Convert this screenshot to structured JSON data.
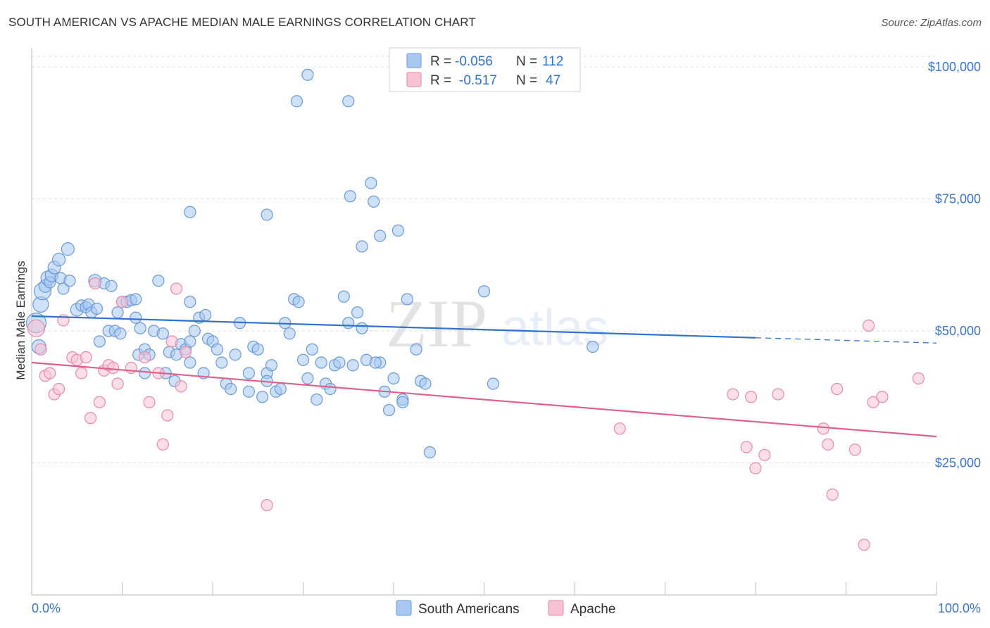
{
  "header": {
    "title": "SOUTH AMERICAN VS APACHE MEDIAN MALE EARNINGS CORRELATION CHART",
    "source": "Source: ZipAtlas.com"
  },
  "watermark": {
    "zip": "ZIP",
    "atlas": "atlas"
  },
  "legend": {
    "rows": [
      {
        "r_label": "R =",
        "r_value": "-0.056",
        "n_label": "N =",
        "n_value": "112",
        "color": "#a8c8f0"
      },
      {
        "r_label": "R =",
        "r_value": "-0.517",
        "n_label": "N =",
        "n_value": "47",
        "color": "#f4b8cc"
      }
    ]
  },
  "bottom_legend": [
    {
      "label": "South Americans",
      "color": "#a8c8f0"
    },
    {
      "label": "Apache",
      "color": "#f4b8cc"
    }
  ],
  "colors": {
    "blue_fill": "#a8c8f0",
    "blue_stroke": "#6a9ad8",
    "blue_line": "#2f72d0",
    "pink_fill": "#f7c3d4",
    "pink_stroke": "#e98aaa",
    "pink_line": "#e0608c",
    "tick_text": "#3b74c9",
    "grid": "#dddddd"
  },
  "chart_data": {
    "type": "scatter",
    "title": "SOUTH AMERICAN VS APACHE MEDIAN MALE EARNINGS CORRELATION CHART",
    "xlabel": "",
    "ylabel": "Median Male Earnings",
    "xlim": [
      0,
      100
    ],
    "ylim": [
      0,
      102000
    ],
    "x_tick_labels": [
      "0.0%",
      "100.0%"
    ],
    "y_ticks": [
      25000,
      50000,
      75000,
      100000
    ],
    "y_tick_labels": [
      "$25,000",
      "$50,000",
      "$75,000",
      "$100,000"
    ],
    "grid": true,
    "series": [
      {
        "name": "South Americans",
        "r": -0.056,
        "n": 112,
        "trend": {
          "x0": 0,
          "y0": 52800,
          "x1": 80,
          "y1": 48700,
          "dashed_to": 100,
          "dashed_y": 47700
        },
        "points": [
          [
            0.5,
            51500,
            14
          ],
          [
            0.8,
            47000,
            10
          ],
          [
            1.0,
            55000,
            11
          ],
          [
            1.2,
            57500,
            12
          ],
          [
            1.5,
            58500,
            9
          ],
          [
            1.8,
            60000,
            10
          ],
          [
            2.0,
            59200,
            8
          ],
          [
            2.2,
            60500,
            9
          ],
          [
            2.5,
            62000,
            9
          ],
          [
            3.0,
            63500,
            9
          ],
          [
            3.2,
            60000,
            8
          ],
          [
            3.5,
            58000,
            8
          ],
          [
            4.0,
            65500,
            9
          ],
          [
            4.2,
            59500,
            8
          ],
          [
            5.0,
            54000,
            9
          ],
          [
            5.5,
            54800,
            8
          ],
          [
            6.0,
            54500,
            8
          ],
          [
            6.3,
            55000,
            8
          ],
          [
            6.6,
            53500,
            8
          ],
          [
            7.0,
            59500,
            9
          ],
          [
            7.2,
            54200,
            8
          ],
          [
            7.5,
            48000,
            8
          ],
          [
            8.0,
            59000,
            8
          ],
          [
            8.5,
            50000,
            8
          ],
          [
            8.8,
            58500,
            8
          ],
          [
            9.2,
            50000,
            8
          ],
          [
            9.5,
            53500,
            8
          ],
          [
            9.8,
            49500,
            8
          ],
          [
            10.0,
            55500,
            8
          ],
          [
            10.5,
            55500,
            8
          ],
          [
            11.0,
            55800,
            8
          ],
          [
            11.5,
            52500,
            8
          ],
          [
            11.8,
            45500,
            8
          ],
          [
            12.0,
            50500,
            8
          ],
          [
            12.5,
            46500,
            8
          ],
          [
            13.0,
            45500,
            8
          ],
          [
            13.5,
            50000,
            8
          ],
          [
            14.0,
            59500,
            8
          ],
          [
            14.5,
            49500,
            8
          ],
          [
            14.8,
            42000,
            8
          ],
          [
            15.2,
            46000,
            8
          ],
          [
            15.8,
            40500,
            8
          ],
          [
            16.0,
            45500,
            8
          ],
          [
            16.5,
            47500,
            8
          ],
          [
            17.0,
            46500,
            8
          ],
          [
            17.5,
            44000,
            8
          ],
          [
            17.5,
            55500,
            8
          ],
          [
            18.0,
            50000,
            8
          ],
          [
            18.5,
            52500,
            8
          ],
          [
            19.0,
            42000,
            8
          ],
          [
            19.2,
            53000,
            8
          ],
          [
            19.5,
            48500,
            8
          ],
          [
            20.0,
            48000,
            8
          ],
          [
            20.5,
            46500,
            8
          ],
          [
            21.0,
            44000,
            8
          ],
          [
            21.5,
            40000,
            8
          ],
          [
            22.0,
            39000,
            8
          ],
          [
            22.5,
            45500,
            8
          ],
          [
            23.0,
            51500,
            8
          ],
          [
            24.0,
            38500,
            8
          ],
          [
            24.5,
            47000,
            8
          ],
          [
            25.0,
            46500,
            8
          ],
          [
            25.5,
            37500,
            8
          ],
          [
            26.0,
            42000,
            8
          ],
          [
            26.5,
            43500,
            8
          ],
          [
            27.0,
            38500,
            8
          ],
          [
            27.5,
            39000,
            8
          ],
          [
            28.0,
            51500,
            8
          ],
          [
            28.5,
            49500,
            8
          ],
          [
            29.0,
            56000,
            8
          ],
          [
            29.5,
            55500,
            8
          ],
          [
            30.0,
            44500,
            8
          ],
          [
            30.5,
            41000,
            8
          ],
          [
            31.0,
            46500,
            8
          ],
          [
            31.5,
            37000,
            8
          ],
          [
            32.0,
            44000,
            8
          ],
          [
            32.5,
            40000,
            8
          ],
          [
            33.0,
            39000,
            8
          ],
          [
            33.5,
            43500,
            8
          ],
          [
            34.0,
            44000,
            8
          ],
          [
            34.5,
            56500,
            8
          ],
          [
            35.0,
            51500,
            8
          ],
          [
            35.5,
            43500,
            8
          ],
          [
            36.0,
            53500,
            8
          ],
          [
            36.5,
            50500,
            8
          ],
          [
            37.0,
            44500,
            8
          ],
          [
            37.5,
            78000,
            8
          ],
          [
            37.8,
            74500,
            8
          ],
          [
            38.5,
            44000,
            8
          ],
          [
            39.0,
            38500,
            8
          ],
          [
            39.5,
            35000,
            8
          ],
          [
            40.0,
            41000,
            8
          ],
          [
            41.0,
            37000,
            8
          ],
          [
            41.5,
            56000,
            8
          ],
          [
            42.5,
            46500,
            8
          ],
          [
            43.0,
            40500,
            8
          ],
          [
            44.0,
            27000,
            8
          ],
          [
            24.0,
            42000,
            8
          ],
          [
            26.0,
            40500,
            8
          ],
          [
            17.5,
            48000,
            8
          ],
          [
            11.5,
            56000,
            8
          ],
          [
            12.5,
            42000,
            8
          ],
          [
            17.5,
            72500,
            8
          ],
          [
            26.0,
            72000,
            8
          ],
          [
            29.3,
            93500,
            8
          ],
          [
            30.5,
            98500,
            8
          ],
          [
            35.0,
            93500,
            8
          ],
          [
            35.2,
            75500,
            8
          ],
          [
            36.5,
            66000,
            8
          ],
          [
            38.5,
            68000,
            8
          ],
          [
            40.5,
            69000,
            8
          ],
          [
            38.0,
            44000,
            8
          ],
          [
            41.0,
            36500,
            8
          ],
          [
            43.5,
            40000,
            8
          ],
          [
            50.0,
            57500,
            8
          ],
          [
            51.0,
            40000,
            8
          ],
          [
            62.0,
            47000,
            8
          ]
        ]
      },
      {
        "name": "Apache",
        "r": -0.517,
        "n": 47,
        "trend": {
          "x0": 0,
          "y0": 44000,
          "x1": 100,
          "y1": 30000
        },
        "points": [
          [
            0.5,
            50500,
            12
          ],
          [
            1.0,
            46500,
            8
          ],
          [
            1.5,
            41500,
            8
          ],
          [
            2.0,
            42000,
            8
          ],
          [
            2.5,
            38000,
            8
          ],
          [
            3.0,
            39000,
            8
          ],
          [
            3.5,
            52000,
            8
          ],
          [
            4.5,
            45000,
            8
          ],
          [
            5.0,
            44500,
            8
          ],
          [
            5.5,
            42000,
            8
          ],
          [
            6.0,
            45000,
            8
          ],
          [
            6.5,
            33500,
            8
          ],
          [
            7.0,
            59000,
            8
          ],
          [
            7.5,
            36500,
            8
          ],
          [
            8.0,
            42500,
            8
          ],
          [
            8.5,
            43500,
            8
          ],
          [
            9.0,
            43000,
            8
          ],
          [
            9.5,
            40000,
            8
          ],
          [
            10.0,
            55500,
            8
          ],
          [
            11.0,
            43000,
            8
          ],
          [
            12.5,
            45000,
            8
          ],
          [
            13.0,
            36500,
            8
          ],
          [
            14.0,
            42000,
            8
          ],
          [
            14.5,
            28500,
            8
          ],
          [
            15.0,
            34000,
            8
          ],
          [
            15.5,
            48000,
            8
          ],
          [
            16.0,
            58000,
            8
          ],
          [
            16.5,
            39500,
            8
          ],
          [
            17.0,
            46000,
            8
          ],
          [
            26.0,
            17000,
            8
          ],
          [
            65.0,
            31500,
            8
          ],
          [
            77.5,
            38000,
            8
          ],
          [
            79.5,
            37500,
            8
          ],
          [
            82.5,
            38000,
            8
          ],
          [
            79.0,
            28000,
            8
          ],
          [
            80.0,
            24000,
            8
          ],
          [
            81.0,
            26500,
            8
          ],
          [
            87.5,
            31500,
            8
          ],
          [
            88.0,
            28500,
            8
          ],
          [
            88.5,
            19000,
            8
          ],
          [
            89.0,
            39000,
            8
          ],
          [
            91.0,
            27500,
            8
          ],
          [
            92.5,
            51000,
            8
          ],
          [
            93.0,
            36500,
            8
          ],
          [
            94.0,
            37500,
            8
          ],
          [
            98.0,
            41000,
            8
          ],
          [
            92.0,
            9500,
            8
          ]
        ]
      }
    ]
  }
}
